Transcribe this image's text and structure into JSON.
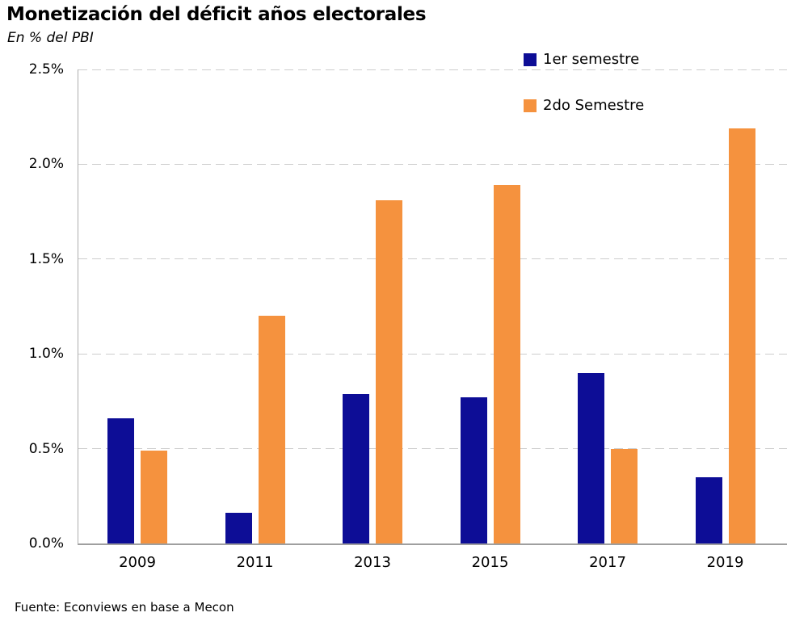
{
  "chart_data": {
    "type": "bar",
    "title": "Monetización del déficit años electorales",
    "subtitle": "En % del PBI",
    "categories": [
      "2009",
      "2011",
      "2013",
      "2015",
      "2017",
      "2019"
    ],
    "series": [
      {
        "name": "1er semestre",
        "color": "#0d0d96",
        "values": [
          0.66,
          0.16,
          0.79,
          0.77,
          0.9,
          0.35
        ]
      },
      {
        "name": "2do Semestre",
        "color": "#f5923e",
        "values": [
          0.49,
          1.2,
          1.81,
          1.89,
          0.5,
          2.19
        ]
      }
    ],
    "xlabel": "",
    "ylabel": "",
    "ylim": [
      0,
      2.5
    ],
    "y_ticks": [
      {
        "value": 0.0,
        "label": "0.0%"
      },
      {
        "value": 0.5,
        "label": "0.5%"
      },
      {
        "value": 1.0,
        "label": "1.0%"
      },
      {
        "value": 1.5,
        "label": "1.5%"
      },
      {
        "value": 2.0,
        "label": "2.0%"
      },
      {
        "value": 2.5,
        "label": "2.5%"
      }
    ],
    "grid": "horizontal-dashed",
    "gridline_color": "#cdcdcd",
    "axis_color": "#9f9f9f",
    "legend_position": "top-right",
    "source": "Fuente: Econviews en base a Mecon"
  }
}
